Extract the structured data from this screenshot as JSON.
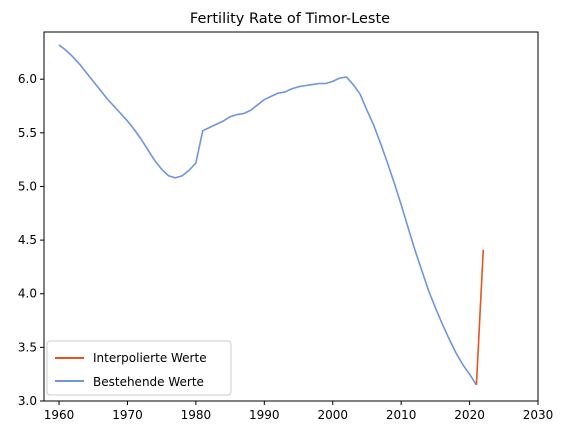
{
  "chart_data": {
    "type": "line",
    "title": "Fertility Rate of Timor-Leste",
    "xlabel": "",
    "ylabel": "",
    "xlim": [
      1957.8,
      2030
    ],
    "ylim": [
      3.0,
      6.44
    ],
    "x_ticks": [
      1960,
      1970,
      1980,
      1990,
      2000,
      2010,
      2020,
      2030
    ],
    "y_ticks": [
      3.0,
      3.5,
      4.0,
      4.5,
      5.0,
      5.5,
      6.0
    ],
    "y_tick_labels": [
      "3.0",
      "3.5",
      "4.0",
      "4.5",
      "5.0",
      "5.5",
      "6.0"
    ],
    "grid": false,
    "legend_position": "lower-left",
    "series": [
      {
        "name": "Interpolierte Werte",
        "color": "#e8541e",
        "x": [
          2021,
          2022
        ],
        "y": [
          3.15,
          4.41
        ]
      },
      {
        "name": "Bestehende Werte",
        "color": "#6f94e0",
        "x": [
          1960,
          1961,
          1962,
          1963,
          1964,
          1965,
          1966,
          1967,
          1968,
          1969,
          1970,
          1971,
          1972,
          1973,
          1974,
          1975,
          1976,
          1977,
          1978,
          1979,
          1980,
          1981,
          1982,
          1983,
          1984,
          1985,
          1986,
          1987,
          1988,
          1989,
          1990,
          1991,
          1992,
          1993,
          1994,
          1995,
          1996,
          1997,
          1998,
          1999,
          2000,
          2001,
          2002,
          2003,
          2004,
          2005,
          2006,
          2007,
          2008,
          2009,
          2010,
          2011,
          2012,
          2013,
          2014,
          2015,
          2016,
          2017,
          2018,
          2019,
          2020,
          2021
        ],
        "y": [
          6.32,
          6.27,
          6.21,
          6.14,
          6.06,
          5.98,
          5.9,
          5.82,
          5.75,
          5.68,
          5.61,
          5.53,
          5.44,
          5.34,
          5.24,
          5.16,
          5.1,
          5.08,
          5.1,
          5.15,
          5.22,
          5.52,
          5.55,
          5.58,
          5.61,
          5.65,
          5.67,
          5.68,
          5.71,
          5.76,
          5.81,
          5.84,
          5.87,
          5.88,
          5.91,
          5.93,
          5.94,
          5.95,
          5.96,
          5.96,
          5.98,
          6.01,
          6.02,
          5.95,
          5.86,
          5.71,
          5.57,
          5.4,
          5.22,
          5.03,
          4.83,
          4.62,
          4.41,
          4.22,
          4.03,
          3.87,
          3.72,
          3.58,
          3.45,
          3.34,
          3.25,
          3.15
        ]
      }
    ]
  }
}
